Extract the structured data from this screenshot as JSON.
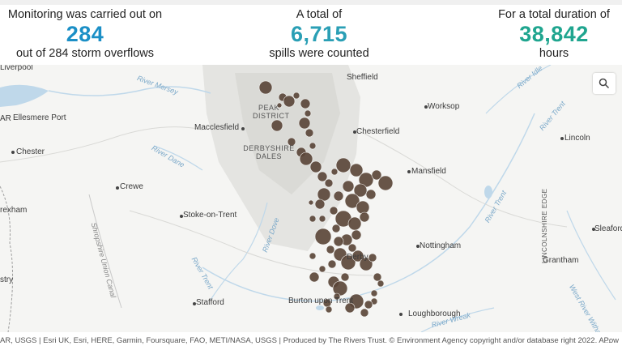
{
  "stats": {
    "monitoring": {
      "label": "Monitoring was carried out on",
      "value": "284",
      "sub": "out of 284 storm overflows",
      "color": "#1b8fc6"
    },
    "spills": {
      "label": "A total of",
      "value": "6,715",
      "sub": "spills were counted",
      "color": "#2a9fb5"
    },
    "duration": {
      "label": "For a total duration of",
      "value": "38,842",
      "sub": "hours",
      "color": "#1fa58f"
    }
  },
  "map": {
    "places": {
      "liverpool": "Liverpool",
      "ellesmere_port": "Ellesmere Port",
      "chester": "Chester",
      "wrexham": "rexham",
      "crewe": "Crewe",
      "macclesfield": "Macclesfield",
      "stoke": "Stoke-on-Trent",
      "stafford": "Stafford",
      "sheffield": "Sheffield",
      "chesterfield": "Chesterfield",
      "worksop": "Worksop",
      "mansfield": "Mansfield",
      "nottingham": "Nottingham",
      "derby": "Derby",
      "burton": "Burton upon Trent",
      "loughborough": "Loughborough",
      "lincoln": "Lincoln",
      "grantham": "Grantham",
      "sleaford": "Sleaford",
      "peak_district": "PEAK DISTRICT",
      "derbyshire_dales": "DERBYSHIRE DALES",
      "lincolnshire_edge": "LINCOLNSHIRE EDGE",
      "ar": "AR",
      "stry": "stry"
    },
    "rivers": {
      "mersey": "River Mersey",
      "dane": "River Dane",
      "dove": "River Dove",
      "trent_w": "River Trent",
      "trent_e": "River Trent",
      "trent_ne": "River Trent",
      "idle": "River Idle",
      "wreak": "River Wreak",
      "witham": "West River Witham",
      "canal": "Shropshire Union Canal"
    },
    "overflow_color": "#5b463a",
    "water_color": "#bfd8ea"
  },
  "search_icon": "search-icon",
  "attribution": {
    "text": "AR, USGS | Esri UK, Esri, HERE, Garmin, Foursquare, FAO, METI/NASA, USGS | Produced by The Rivers Trust. © Environment Agency copyright and/or database right 2022. A...",
    "powered": "Pow"
  }
}
